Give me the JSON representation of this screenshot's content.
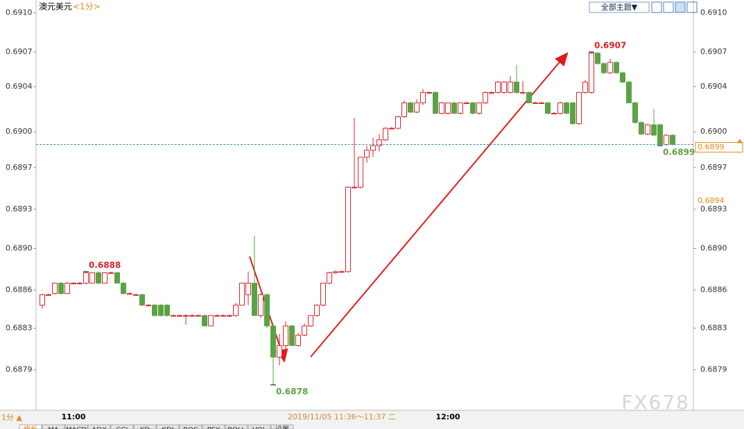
{
  "header": {
    "symbol": "澳元美元",
    "period": "<1分>",
    "theme_button": "全部主题▼"
  },
  "chart_data": {
    "type": "candlestick",
    "categories": [
      null,
      null,
      null,
      null,
      null,
      "11:00",
      null,
      null,
      null,
      null,
      null,
      null,
      null,
      null,
      null,
      null,
      null,
      null,
      null,
      null,
      null,
      null,
      null,
      null,
      null,
      null,
      null,
      null,
      null,
      null,
      null,
      null,
      null,
      null,
      null,
      null,
      null,
      null,
      null,
      null,
      null,
      null,
      null,
      null,
      null,
      null,
      null,
      null,
      null,
      null,
      null,
      null,
      null,
      null,
      null,
      null,
      null,
      null,
      null,
      null,
      null,
      null,
      null,
      null,
      null,
      "12:00",
      null,
      null,
      null,
      null,
      null,
      null,
      null,
      null,
      null,
      null,
      null,
      null,
      null,
      null,
      null,
      null,
      null,
      null,
      null,
      null,
      null,
      null,
      null,
      null,
      null,
      null,
      null,
      null,
      null,
      null,
      null,
      null,
      null,
      null,
      null,
      null
    ],
    "ohlc": [
      [
        0.68847,
        0.68857,
        0.68844,
        0.68856
      ],
      [
        0.68856,
        0.68857,
        0.68855,
        0.68856
      ],
      [
        0.68857,
        0.68866,
        0.68856,
        0.68866
      ],
      [
        0.68866,
        0.68867,
        0.68856,
        0.68857
      ],
      [
        0.68857,
        0.68867,
        0.68857,
        0.68866
      ],
      [
        0.68866,
        0.68867,
        0.68865,
        0.68866
      ],
      [
        0.68866,
        0.68867,
        0.68865,
        0.68866
      ],
      [
        0.68866,
        0.68876,
        0.68865,
        0.68875
      ],
      [
        0.68866,
        0.68875,
        0.68866,
        0.68875
      ],
      [
        0.68875,
        0.68876,
        0.68865,
        0.68866
      ],
      [
        0.68866,
        0.68875,
        0.68866,
        0.68875
      ],
      [
        0.68875,
        0.68876,
        0.68874,
        0.68875
      ],
      [
        0.68875,
        0.68876,
        0.68866,
        0.68866
      ],
      [
        0.68866,
        0.68867,
        0.68856,
        0.68857
      ],
      [
        0.68857,
        0.68858,
        0.68856,
        0.68857
      ],
      [
        0.68856,
        0.68857,
        0.68855,
        0.68856
      ],
      [
        0.68856,
        0.68857,
        0.68846,
        0.68847
      ],
      [
        0.68847,
        0.68848,
        0.68846,
        0.68847
      ],
      [
        0.68847,
        0.68848,
        0.68837,
        0.68838
      ],
      [
        0.68847,
        0.68848,
        0.68837,
        0.68838
      ],
      [
        0.68847,
        0.68848,
        0.68837,
        0.68838
      ],
      [
        0.68838,
        0.68839,
        0.68837,
        0.68838
      ],
      [
        0.68838,
        0.68839,
        0.68837,
        0.68838
      ],
      [
        0.68838,
        0.68839,
        0.6883,
        0.68838
      ],
      [
        0.68838,
        0.68839,
        0.68837,
        0.68838
      ],
      [
        0.68838,
        0.68839,
        0.68837,
        0.68838
      ],
      [
        0.68838,
        0.68839,
        0.68829,
        0.68829
      ],
      [
        0.68829,
        0.68838,
        0.68829,
        0.68838
      ],
      [
        0.68838,
        0.68839,
        0.68837,
        0.68838
      ],
      [
        0.68838,
        0.68839,
        0.68837,
        0.68838
      ],
      [
        0.68838,
        0.68839,
        0.68837,
        0.68838
      ],
      [
        0.68838,
        0.68849,
        0.68837,
        0.68847
      ],
      [
        0.68847,
        0.68866,
        0.68847,
        0.68866
      ],
      [
        0.68856,
        0.68876,
        0.68847,
        0.68866
      ],
      [
        0.68866,
        0.68907,
        0.68838,
        0.68838
      ],
      [
        0.68838,
        0.68857,
        0.68836,
        0.68856
      ],
      [
        0.68856,
        0.68857,
        0.68827,
        0.68829
      ],
      [
        0.68829,
        0.68831,
        0.68778,
        0.68802
      ],
      [
        0.68802,
        0.68822,
        0.68795,
        0.68812
      ],
      [
        0.68812,
        0.68833,
        0.68808,
        0.68829
      ],
      [
        0.68829,
        0.6883,
        0.68812,
        0.68812
      ],
      [
        0.68812,
        0.68823,
        0.68811,
        0.68821
      ],
      [
        0.68821,
        0.68831,
        0.6882,
        0.68829
      ],
      [
        0.68829,
        0.68838,
        0.68828,
        0.68838
      ],
      [
        0.68838,
        0.68848,
        0.68837,
        0.68847
      ],
      [
        0.68847,
        0.68866,
        0.68846,
        0.68866
      ],
      [
        0.68866,
        0.68876,
        0.68865,
        0.68875
      ],
      [
        0.68875,
        0.68877,
        0.68874,
        0.68876
      ],
      [
        0.68876,
        0.68877,
        0.68875,
        0.68876
      ],
      [
        0.68876,
        0.6895,
        0.68875,
        0.68949
      ],
      [
        0.68949,
        0.69009,
        0.68948,
        0.68949
      ],
      [
        0.68949,
        0.68975,
        0.68948,
        0.68975
      ],
      [
        0.68975,
        0.68985,
        0.6897,
        0.68981
      ],
      [
        0.68981,
        0.68992,
        0.68975,
        0.68985
      ],
      [
        0.68985,
        0.68995,
        0.6898,
        0.6899
      ],
      [
        0.6899,
        0.69001,
        0.68989,
        0.69
      ],
      [
        0.69,
        0.69001,
        0.68999,
        0.69
      ],
      [
        0.69,
        0.69011,
        0.68999,
        0.6901
      ],
      [
        0.6901,
        0.69024,
        0.69009,
        0.69022
      ],
      [
        0.69022,
        0.69023,
        0.69013,
        0.69014
      ],
      [
        0.69014,
        0.69025,
        0.69013,
        0.69022
      ],
      [
        0.69022,
        0.69034,
        0.6902,
        0.69031
      ],
      [
        0.69031,
        0.69032,
        0.6903,
        0.69031
      ],
      [
        0.69031,
        0.69032,
        0.69012,
        0.69013
      ],
      [
        0.69013,
        0.69023,
        0.69012,
        0.69022
      ],
      [
        0.69013,
        0.69022,
        0.69012,
        0.69022
      ],
      [
        0.69022,
        0.69023,
        0.69012,
        0.69013
      ],
      [
        0.69013,
        0.69022,
        0.69012,
        0.69022
      ],
      [
        0.69022,
        0.69023,
        0.69021,
        0.69022
      ],
      [
        0.69022,
        0.69023,
        0.69012,
        0.69013
      ],
      [
        0.69013,
        0.69022,
        0.69012,
        0.69022
      ],
      [
        0.69022,
        0.69032,
        0.69021,
        0.69031
      ],
      [
        0.69031,
        0.69032,
        0.6903,
        0.69031
      ],
      [
        0.69031,
        0.69041,
        0.6903,
        0.6904
      ],
      [
        0.69031,
        0.69041,
        0.6903,
        0.6904
      ],
      [
        0.69031,
        0.69045,
        0.6903,
        0.6904
      ],
      [
        0.6904,
        0.69055,
        0.6903,
        0.69031
      ],
      [
        0.69031,
        0.69041,
        0.6903,
        0.69031
      ],
      [
        0.69031,
        0.69032,
        0.69022,
        0.69022
      ],
      [
        0.69022,
        0.69023,
        0.69021,
        0.69022
      ],
      [
        0.69022,
        0.69023,
        0.69021,
        0.69022
      ],
      [
        0.69022,
        0.69023,
        0.69012,
        0.69013
      ],
      [
        0.69013,
        0.69014,
        0.69012,
        0.69013
      ],
      [
        0.69013,
        0.69023,
        0.69012,
        0.69022
      ],
      [
        0.69022,
        0.69023,
        0.69012,
        0.69013
      ],
      [
        0.69022,
        0.69023,
        0.69003,
        0.69004
      ],
      [
        0.69004,
        0.69031,
        0.69003,
        0.69031
      ],
      [
        0.69031,
        0.69042,
        0.6903,
        0.6904
      ],
      [
        0.69031,
        0.69066,
        0.6903,
        0.69065
      ],
      [
        0.69065,
        0.69066,
        0.69055,
        0.69056
      ],
      [
        0.69056,
        0.69057,
        0.69047,
        0.69048
      ],
      [
        0.69048,
        0.6906,
        0.69047,
        0.69057
      ],
      [
        0.69057,
        0.69058,
        0.69047,
        0.69048
      ],
      [
        0.69048,
        0.69049,
        0.69039,
        0.6904
      ],
      [
        0.6904,
        0.69041,
        0.69022,
        0.69022
      ],
      [
        0.69022,
        0.69023,
        0.69004,
        0.69005
      ],
      [
        0.69005,
        0.69006,
        0.68994,
        0.68995
      ],
      [
        0.68995,
        0.69004,
        0.68994,
        0.69003
      ],
      [
        0.69003,
        0.69017,
        0.68994,
        0.68994
      ],
      [
        0.69003,
        0.69004,
        0.68985,
        0.68986
      ],
      [
        0.68986,
        0.68995,
        0.68985,
        0.68994
      ],
      [
        0.68994,
        0.68995,
        0.68985,
        0.68986
      ]
    ],
    "up_color": "#d9232a",
    "down_color": "#5aa345",
    "ylim": [
      0.68756,
      0.69111
    ],
    "yticks": [
      {
        "value": 0.691,
        "label": "0.6910"
      },
      {
        "value": 0.69066,
        "label": "0.6907"
      },
      {
        "value": 0.69036,
        "label": "0.6904"
      },
      {
        "value": 0.68997,
        "label": "0.6900"
      },
      {
        "value": 0.68966,
        "label": "0.6897"
      },
      {
        "value": 0.6893,
        "label": "0.6893"
      },
      {
        "value": 0.68896,
        "label": "0.6890"
      },
      {
        "value": 0.6886,
        "label": "0.6886"
      },
      {
        "value": 0.68827,
        "label": "0.6883"
      },
      {
        "value": 0.68791,
        "label": "0.6879"
      }
    ],
    "annotations": [
      {
        "value": 0.68876,
        "label": "0.6888",
        "at": "high",
        "color": "#d9232a"
      },
      {
        "value": 0.69066,
        "label": "0.6907",
        "at": "high",
        "color": "#d9232a"
      },
      {
        "value": 0.68778,
        "label": "0.6878",
        "at": "low",
        "color": "#5aa345"
      },
      {
        "value": 0.68985,
        "label": "0.6899",
        "at": "low",
        "color": "#5aa345"
      }
    ],
    "last_price": {
      "value": 0.68986,
      "label": "0.6899"
    },
    "reference_price": {
      "value": 0.68937,
      "label": "0.6894"
    }
  },
  "footer": {
    "period": "1分 ▲",
    "tooltip": "2019/11/05 11:36～11:37 二",
    "watermark": "FX678",
    "tabs": [
      "模板",
      "MA",
      "MACD",
      "ADX",
      "CCI",
      "KD",
      "KDJ",
      "ROC",
      "PSY",
      "BOLL",
      "VOL",
      "设置"
    ]
  }
}
